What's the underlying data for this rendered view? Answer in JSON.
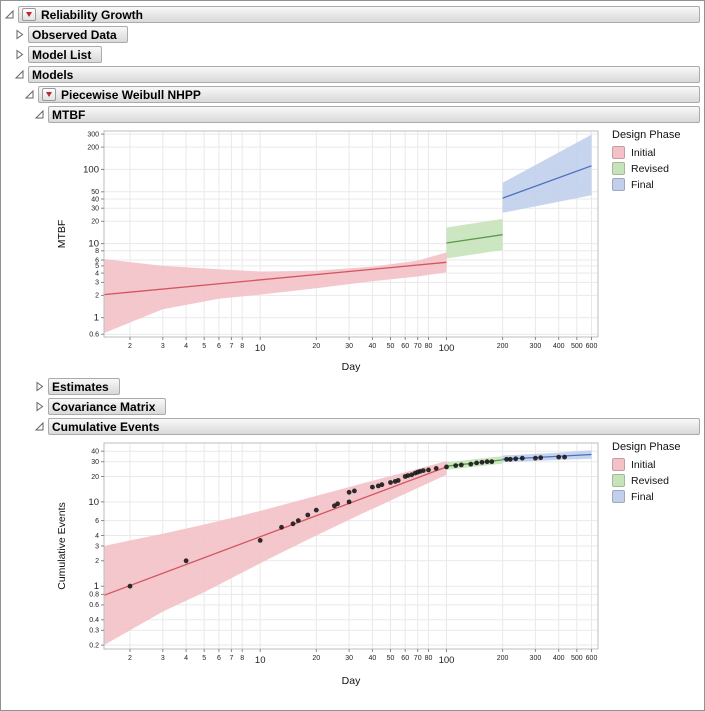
{
  "outline": [
    {
      "label": "Reliability Growth",
      "expanded": true
    },
    {
      "label": "Observed Data",
      "expanded": false
    },
    {
      "label": "Model List",
      "expanded": false
    },
    {
      "label": "Models",
      "expanded": true
    },
    {
      "label": "Piecewise Weibull NHPP",
      "expanded": true
    },
    {
      "label": "MTBF",
      "expanded": true
    },
    {
      "label": "Estimates",
      "expanded": false
    },
    {
      "label": "Covariance Matrix",
      "expanded": false
    },
    {
      "label": "Cumulative Events",
      "expanded": true
    }
  ],
  "legend": {
    "title": "Design Phase",
    "items": [
      {
        "label": "Initial",
        "color": "#f3c1c7"
      },
      {
        "label": "Revised",
        "color": "#c6e3ba"
      },
      {
        "label": "Final",
        "color": "#c1cfec"
      }
    ]
  },
  "chart_data": [
    {
      "type": "line",
      "name": "MTBF",
      "xlabel": "Day",
      "ylabel": "MTBF",
      "xscale": "log",
      "yscale": "log",
      "xlim": [
        1.45,
        650
      ],
      "ylim": [
        0.55,
        330
      ],
      "grid": true,
      "legend_position": "right",
      "legend_title": "Design Phase",
      "xticks": [
        {
          "v": 2,
          "l": "2"
        },
        {
          "v": 3,
          "l": "3"
        },
        {
          "v": 4,
          "l": "4"
        },
        {
          "v": 5,
          "l": "5"
        },
        {
          "v": 6,
          "l": "6"
        },
        {
          "v": 7,
          "l": "7"
        },
        {
          "v": 8,
          "l": "8"
        },
        {
          "v": 10,
          "l": "10",
          "m": true
        },
        {
          "v": 20,
          "l": "20"
        },
        {
          "v": 30,
          "l": "30"
        },
        {
          "v": 40,
          "l": "40"
        },
        {
          "v": 50,
          "l": "50"
        },
        {
          "v": 60,
          "l": "60"
        },
        {
          "v": 70,
          "l": "70"
        },
        {
          "v": 80,
          "l": "80"
        },
        {
          "v": 100,
          "l": "100",
          "m": true
        },
        {
          "v": 200,
          "l": "200"
        },
        {
          "v": 300,
          "l": "300"
        },
        {
          "v": 400,
          "l": "400"
        },
        {
          "v": 500,
          "l": "500"
        },
        {
          "v": 600,
          "l": "600"
        }
      ],
      "yticks": [
        {
          "v": 0.6,
          "l": "0.6"
        },
        {
          "v": 1,
          "l": "1",
          "m": true
        },
        {
          "v": 2,
          "l": "2"
        },
        {
          "v": 3,
          "l": "3"
        },
        {
          "v": 4,
          "l": "4"
        },
        {
          "v": 5,
          "l": "5"
        },
        {
          "v": 6,
          "l": "6"
        },
        {
          "v": 8,
          "l": "8"
        },
        {
          "v": 10,
          "l": "10",
          "m": true
        },
        {
          "v": 20,
          "l": "20"
        },
        {
          "v": 30,
          "l": "30"
        },
        {
          "v": 40,
          "l": "40"
        },
        {
          "v": 50,
          "l": "50"
        },
        {
          "v": 100,
          "l": "100",
          "m": true
        },
        {
          "v": 200,
          "l": "200"
        },
        {
          "v": 300,
          "l": "300"
        }
      ],
      "phases": [
        {
          "name": "Initial",
          "line_color": "#d4555e",
          "fill_color": "#f3c1c7",
          "line": [
            [
              1.45,
              2.05
            ],
            [
              100,
              5.6
            ]
          ],
          "band_x": [
            1.45,
            3,
            6,
            10,
            20,
            40,
            70,
            100
          ],
          "band_lower": [
            0.62,
            1.3,
            1.8,
            2.05,
            2.5,
            3.1,
            3.6,
            4.1
          ],
          "band_upper": [
            6.2,
            5.0,
            4.5,
            4.2,
            4.3,
            4.9,
            5.9,
            7.6
          ]
        },
        {
          "name": "Revised",
          "line_color": "#599b4c",
          "fill_color": "#c6e3ba",
          "line": [
            [
              100,
              10.2
            ],
            [
              200,
              13.2
            ]
          ],
          "band_x": [
            100,
            200
          ],
          "band_lower": [
            6.3,
            8.2
          ],
          "band_upper": [
            16.5,
            21.5
          ]
        },
        {
          "name": "Final",
          "line_color": "#4a6fbe",
          "fill_color": "#c1cfec",
          "line": [
            [
              200,
              41
            ],
            [
              600,
              112
            ]
          ],
          "band_x": [
            200,
            600
          ],
          "band_lower": [
            26,
            45
          ],
          "band_upper": [
            66,
            295
          ]
        }
      ]
    },
    {
      "type": "scatter",
      "name": "Cumulative Events",
      "xlabel": "Day",
      "ylabel": "Cumulative Events",
      "xscale": "log",
      "yscale": "log",
      "xlim": [
        1.45,
        650
      ],
      "ylim": [
        0.18,
        50
      ],
      "grid": true,
      "legend_position": "right",
      "legend_title": "Design Phase",
      "xticks": [
        {
          "v": 2,
          "l": "2"
        },
        {
          "v": 3,
          "l": "3"
        },
        {
          "v": 4,
          "l": "4"
        },
        {
          "v": 5,
          "l": "5"
        },
        {
          "v": 6,
          "l": "6"
        },
        {
          "v": 7,
          "l": "7"
        },
        {
          "v": 8,
          "l": "8"
        },
        {
          "v": 10,
          "l": "10",
          "m": true
        },
        {
          "v": 20,
          "l": "20"
        },
        {
          "v": 30,
          "l": "30"
        },
        {
          "v": 40,
          "l": "40"
        },
        {
          "v": 50,
          "l": "50"
        },
        {
          "v": 60,
          "l": "60"
        },
        {
          "v": 70,
          "l": "70"
        },
        {
          "v": 80,
          "l": "80"
        },
        {
          "v": 100,
          "l": "100",
          "m": true
        },
        {
          "v": 200,
          "l": "200"
        },
        {
          "v": 300,
          "l": "300"
        },
        {
          "v": 400,
          "l": "400"
        },
        {
          "v": 500,
          "l": "500"
        },
        {
          "v": 600,
          "l": "600"
        }
      ],
      "yticks": [
        {
          "v": 0.2,
          "l": "0.2"
        },
        {
          "v": 0.3,
          "l": "0.3"
        },
        {
          "v": 0.4,
          "l": "0.4"
        },
        {
          "v": 0.6,
          "l": "0.6"
        },
        {
          "v": 0.8,
          "l": "0.8"
        },
        {
          "v": 1,
          "l": "1",
          "m": true
        },
        {
          "v": 2,
          "l": "2"
        },
        {
          "v": 3,
          "l": "3"
        },
        {
          "v": 4,
          "l": "4"
        },
        {
          "v": 6,
          "l": "6"
        },
        {
          "v": 10,
          "l": "10",
          "m": true
        },
        {
          "v": 20,
          "l": "20"
        },
        {
          "v": 30,
          "l": "30"
        },
        {
          "v": 40,
          "l": "40"
        }
      ],
      "phases": [
        {
          "name": "Initial",
          "line_color": "#d4555e",
          "fill_color": "#f3c1c7",
          "line": [
            [
              1.45,
              0.78
            ],
            [
              100,
              26
            ]
          ],
          "band_x": [
            1.45,
            2,
            3,
            5,
            8,
            12,
            20,
            35,
            60,
            100
          ],
          "band_lower": [
            0.2,
            0.3,
            0.5,
            0.85,
            1.45,
            2.3,
            4.0,
            7.2,
            12.5,
            21
          ],
          "band_upper": [
            3.0,
            3.5,
            4.2,
            5.4,
            6.9,
            8.7,
            11.8,
            16.5,
            22.5,
            30.5
          ]
        },
        {
          "name": "Revised",
          "line_color": "#599b4c",
          "fill_color": "#c6e3ba",
          "line": [
            [
              100,
              26.5
            ],
            [
              200,
              31.5
            ]
          ],
          "band_x": [
            100,
            200
          ],
          "band_lower": [
            24,
            28.5
          ],
          "band_upper": [
            29.5,
            35
          ]
        },
        {
          "name": "Final",
          "line_color": "#4a6fbe",
          "fill_color": "#c1cfec",
          "line": [
            [
              200,
              32
            ],
            [
              600,
              36.5
            ]
          ],
          "band_x": [
            200,
            400,
            600
          ],
          "band_lower": [
            29.5,
            31.5,
            32.5
          ],
          "band_upper": [
            35.5,
            38.5,
            41
          ]
        }
      ],
      "points": [
        [
          2,
          1
        ],
        [
          4,
          2
        ],
        [
          10,
          3.5
        ],
        [
          13,
          5
        ],
        [
          15,
          5.5
        ],
        [
          16,
          6
        ],
        [
          18,
          7
        ],
        [
          20,
          8
        ],
        [
          25,
          9
        ],
        [
          26,
          9.5
        ],
        [
          30,
          10
        ],
        [
          30,
          13
        ],
        [
          32,
          13.5
        ],
        [
          40,
          15
        ],
        [
          43,
          15.5
        ],
        [
          45,
          16
        ],
        [
          50,
          17
        ],
        [
          53,
          17.5
        ],
        [
          55,
          18
        ],
        [
          60,
          20
        ],
        [
          62,
          20.5
        ],
        [
          65,
          21
        ],
        [
          68,
          22
        ],
        [
          70,
          22.5
        ],
        [
          72,
          23
        ],
        [
          75,
          23.5
        ],
        [
          80,
          24
        ],
        [
          88,
          25
        ],
        [
          100,
          26
        ],
        [
          112,
          27
        ],
        [
          120,
          27.5
        ],
        [
          135,
          28
        ],
        [
          145,
          29
        ],
        [
          155,
          29.5
        ],
        [
          165,
          30
        ],
        [
          175,
          30
        ],
        [
          210,
          32
        ],
        [
          220,
          32
        ],
        [
          235,
          32.5
        ],
        [
          255,
          33
        ],
        [
          300,
          33
        ],
        [
          320,
          33.5
        ],
        [
          400,
          34
        ],
        [
          430,
          34
        ]
      ]
    }
  ]
}
